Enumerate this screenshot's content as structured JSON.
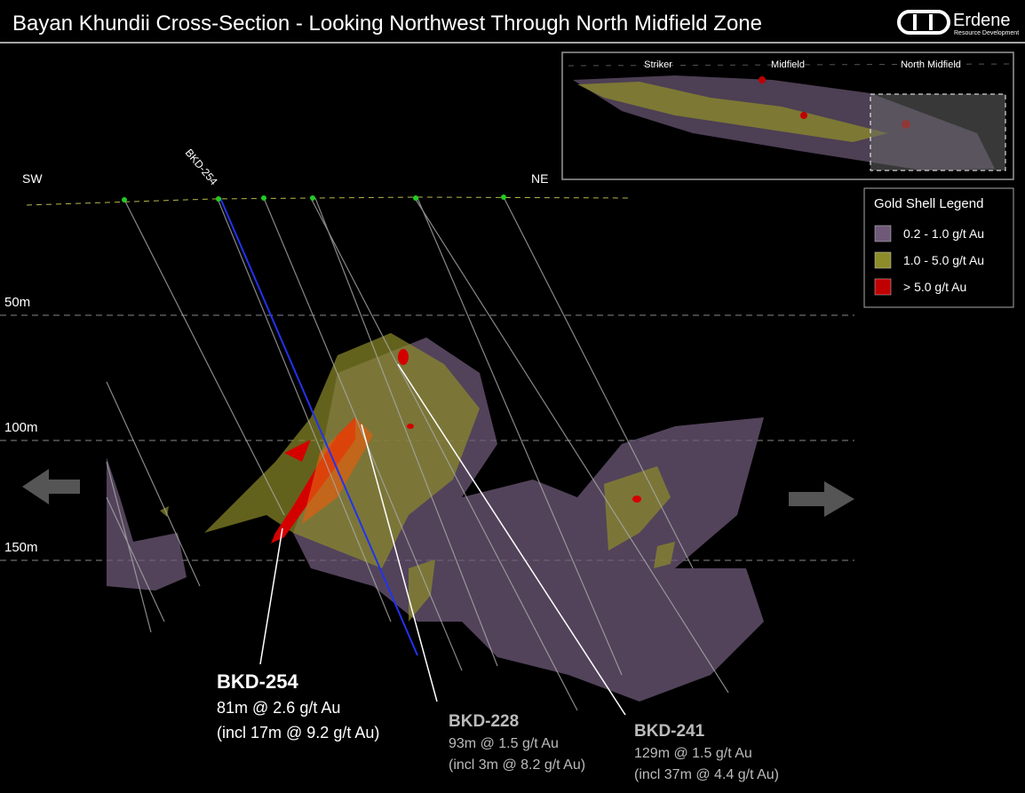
{
  "header": {
    "title": "Bayan Khundii Cross-Section - Looking Northwest Through North Midfield Zone",
    "logo": {
      "name": "Erdene",
      "tagline": "Resource Development"
    }
  },
  "section": {
    "orientation": [
      "SW",
      "NE"
    ],
    "collar_label": "BKD-254",
    "depth_labels": [
      "50m",
      "100m",
      "150m"
    ]
  },
  "inset": {
    "labels": [
      "Striker",
      "Midfield",
      "North Midfield"
    ]
  },
  "legend": {
    "title": "Gold Shell Legend",
    "items": [
      {
        "label": "0.2 - 1.0 g/t Au",
        "color": "#6e5a78"
      },
      {
        "label": "1.0 - 5.0 g/t Au",
        "color": "#8d8c2a"
      },
      {
        "label": "> 5.0 g/t Au",
        "color": "#c00000"
      }
    ]
  },
  "callouts": [
    {
      "hole": "BKD-254",
      "interval": "81m @ 2.6 g/t Au",
      "detail": "(incl 17m @ 9.2 g/t Au)"
    },
    {
      "hole": "BKD-228",
      "interval": "93m @ 1.5 g/t Au",
      "detail": "(incl 3m @ 8.2 g/t Au)"
    },
    {
      "hole": "BKD-241",
      "interval": "129m @ 1.5 g/t Au",
      "detail": "(incl 37m @ 4.4 g/t Au)"
    }
  ]
}
